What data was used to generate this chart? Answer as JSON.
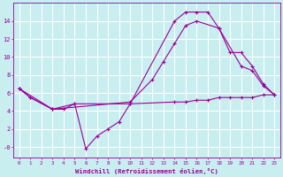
{
  "xlabel": "Windchill (Refroidissement éolien,°C)",
  "bg_color": "#c8eef0",
  "line_color": "#990099",
  "grid_color": "#ffffff",
  "xticks": [
    0,
    1,
    2,
    3,
    4,
    5,
    6,
    7,
    8,
    9,
    10,
    11,
    12,
    13,
    14,
    15,
    16,
    17,
    18,
    19,
    20,
    21,
    22,
    23
  ],
  "ytick_vals": [
    0,
    2,
    4,
    6,
    8,
    10,
    12,
    14
  ],
  "ytick_labels": [
    "-0",
    "2",
    "4",
    "6",
    "8",
    "10",
    "12",
    "14"
  ],
  "ylim": [
    -1.2,
    16
  ],
  "xlim": [
    -0.5,
    23.5
  ],
  "lines": [
    {
      "x": [
        0,
        1,
        3,
        4,
        5,
        6,
        7,
        8,
        9,
        10,
        14,
        15,
        16,
        17,
        18,
        20,
        21,
        22,
        23
      ],
      "y": [
        6.5,
        5.5,
        4.2,
        4.2,
        4.8,
        -0.2,
        1.2,
        2.0,
        2.8,
        4.8,
        14.0,
        15.0,
        15.0,
        15.0,
        13.2,
        9.0,
        8.5,
        6.8,
        5.8
      ]
    },
    {
      "x": [
        0,
        1,
        3,
        5,
        10,
        14,
        15,
        16,
        17,
        18,
        19,
        20,
        21,
        22,
        23
      ],
      "y": [
        6.5,
        5.5,
        4.2,
        4.8,
        4.8,
        5.0,
        5.0,
        5.2,
        5.2,
        5.5,
        5.5,
        5.5,
        5.5,
        5.8,
        5.8
      ]
    },
    {
      "x": [
        0,
        3,
        10,
        12,
        13,
        14,
        15,
        16,
        18,
        19,
        20,
        21,
        22,
        23
      ],
      "y": [
        6.5,
        4.2,
        5.0,
        7.5,
        9.5,
        11.5,
        13.5,
        14.0,
        13.2,
        10.5,
        10.5,
        9.0,
        7.0,
        5.8
      ]
    }
  ]
}
